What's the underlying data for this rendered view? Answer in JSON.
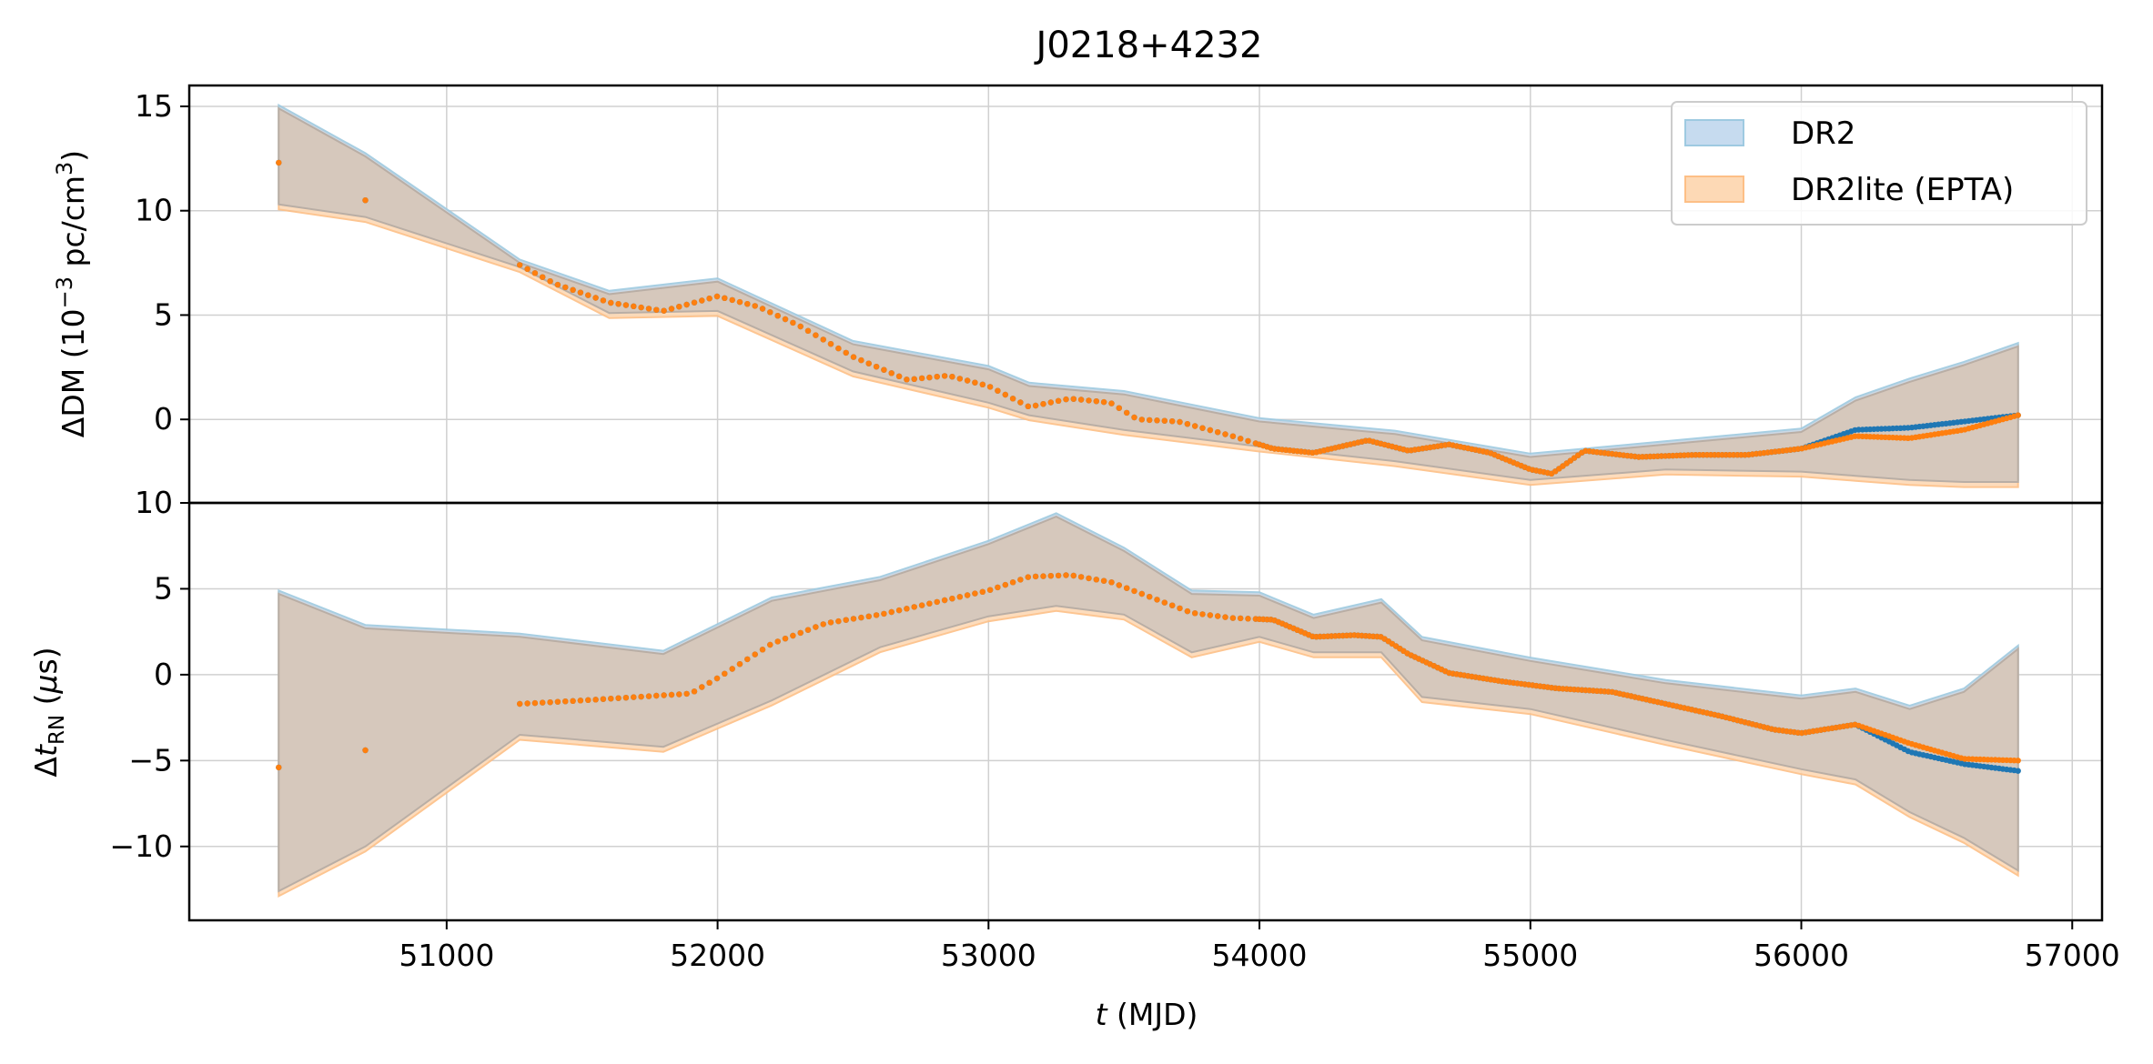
{
  "chart_data": {
    "type": "line",
    "title": "J0218+4232",
    "xlabel": {
      "italic": "t",
      "rest": " (MJD)"
    },
    "xlim": [
      50050,
      57110
    ],
    "xticks": [
      51000,
      52000,
      53000,
      54000,
      55000,
      56000,
      57000
    ],
    "xtick_labels": [
      "51000",
      "52000",
      "53000",
      "54000",
      "55000",
      "56000",
      "57000"
    ],
    "grid": true,
    "legend": {
      "placement": "top-right",
      "entries": [
        {
          "name": "DR2",
          "fill": "#c6dbef",
          "edge": "#9ecae1"
        },
        {
          "name": "DR2lite (EPTA)",
          "fill": "#fdd9b5",
          "edge": "#fdbf86"
        }
      ]
    },
    "colors": {
      "dr2": "#1f77b4",
      "dr2lite": "#ff7f0e",
      "overlap_band": "#d6c8bc"
    },
    "panels": [
      {
        "ylabel": {
          "main": "ΔDM (10",
          "sup1": "−3",
          "mid": " pc/cm",
          "sup2": "3",
          "end": ")"
        },
        "ylim": [
          -4,
          16
        ],
        "yticks": [
          0,
          5,
          10,
          15
        ],
        "ytick_labels": [
          "0",
          "5",
          "10",
          "15"
        ],
        "curve": {
          "x": [
            50380,
            50700,
            51270,
            51400,
            51600,
            51800,
            52000,
            52150,
            52300,
            52500,
            52700,
            52850,
            53000,
            53150,
            53300,
            53450,
            53550,
            53700,
            53900,
            54050,
            54200,
            54400,
            54550,
            54700,
            54850,
            55000,
            55080,
            55200,
            55400,
            55600,
            55800,
            56000,
            56200,
            56400,
            56600,
            56800
          ],
          "y": [
            12.3,
            10.5,
            7.4,
            6.5,
            5.6,
            5.2,
            5.9,
            5.4,
            4.5,
            3.0,
            1.9,
            2.1,
            1.6,
            0.6,
            1.0,
            0.8,
            0.0,
            -0.1,
            -0.8,
            -1.4,
            -1.6,
            -1.0,
            -1.5,
            -1.2,
            -1.6,
            -2.4,
            -2.6,
            -1.5,
            -1.8,
            -1.7,
            -1.7,
            -1.4,
            -0.5,
            -0.4,
            -0.1,
            0.2
          ]
        },
        "dr2lite_offset": {
          "x": [
            56000,
            56200,
            56400,
            56600,
            56800
          ],
          "dy": [
            0.0,
            -0.3,
            -0.5,
            -0.4,
            0.0
          ]
        },
        "band": {
          "x": [
            50380,
            50700,
            51270,
            51600,
            52000,
            52500,
            53000,
            53150,
            53500,
            54000,
            54500,
            55000,
            55500,
            56000,
            56200,
            56400,
            56600,
            56800
          ],
          "lower": [
            10.3,
            9.7,
            7.3,
            5.1,
            5.2,
            2.3,
            0.8,
            0.2,
            -0.5,
            -1.3,
            -2.0,
            -2.9,
            -2.4,
            -2.5,
            -2.7,
            -2.9,
            -3.0,
            -3.0
          ],
          "upper": [
            14.9,
            12.6,
            7.5,
            6.0,
            6.6,
            3.6,
            2.4,
            1.6,
            1.2,
            -0.1,
            -0.7,
            -1.8,
            -1.2,
            -0.6,
            0.9,
            1.8,
            2.6,
            3.5
          ]
        }
      },
      {
        "ylabel": {
          "pre": "Δ",
          "italic": "t",
          "sub": "RN",
          "post": " (",
          "italic2": "μ",
          "end": "s)"
        },
        "ylim": [
          -14.3,
          10
        ],
        "yticks": [
          -10,
          -5,
          0,
          5,
          10
        ],
        "ytick_labels": [
          "−10",
          "−5",
          "0",
          "5",
          "10"
        ],
        "curve": {
          "x": [
            50380,
            50700,
            51270,
            51500,
            51700,
            51900,
            52000,
            52200,
            52400,
            52600,
            52800,
            53000,
            53150,
            53300,
            53450,
            53600,
            53750,
            53900,
            54050,
            54200,
            54350,
            54450,
            54550,
            54700,
            54900,
            55100,
            55300,
            55500,
            55700,
            55900,
            56000,
            56200,
            56400,
            56600,
            56800
          ],
          "y": [
            -5.4,
            -4.4,
            -1.7,
            -1.5,
            -1.3,
            -1.1,
            -0.2,
            1.8,
            3.0,
            3.5,
            4.2,
            4.9,
            5.7,
            5.8,
            5.4,
            4.5,
            3.6,
            3.3,
            3.2,
            2.2,
            2.3,
            2.2,
            1.2,
            0.1,
            -0.4,
            -0.8,
            -1.0,
            -1.7,
            -2.4,
            -3.2,
            -3.4,
            -2.9,
            -4.5,
            -5.2,
            -5.6
          ]
        },
        "dr2lite_offset": {
          "x": [
            56200,
            56400,
            56600,
            56800
          ],
          "dy": [
            0.0,
            0.5,
            0.3,
            0.6
          ]
        },
        "band": {
          "x": [
            50380,
            50700,
            51270,
            51800,
            52200,
            52600,
            53000,
            53250,
            53500,
            53750,
            54000,
            54200,
            54450,
            54600,
            55000,
            55500,
            56000,
            56200,
            56400,
            56600,
            56800
          ],
          "lower": [
            -12.6,
            -10.0,
            -3.5,
            -4.2,
            -1.5,
            1.6,
            3.4,
            4.0,
            3.5,
            1.3,
            2.2,
            1.3,
            1.3,
            -1.3,
            -2.0,
            -3.8,
            -5.5,
            -6.1,
            -8.0,
            -9.5,
            -11.4
          ],
          "upper": [
            4.7,
            2.7,
            2.2,
            1.2,
            4.3,
            5.5,
            7.6,
            9.2,
            7.2,
            4.7,
            4.6,
            3.3,
            4.2,
            2.0,
            0.8,
            -0.5,
            -1.4,
            -1.0,
            -2.0,
            -1.0,
            1.5
          ]
        }
      }
    ]
  }
}
